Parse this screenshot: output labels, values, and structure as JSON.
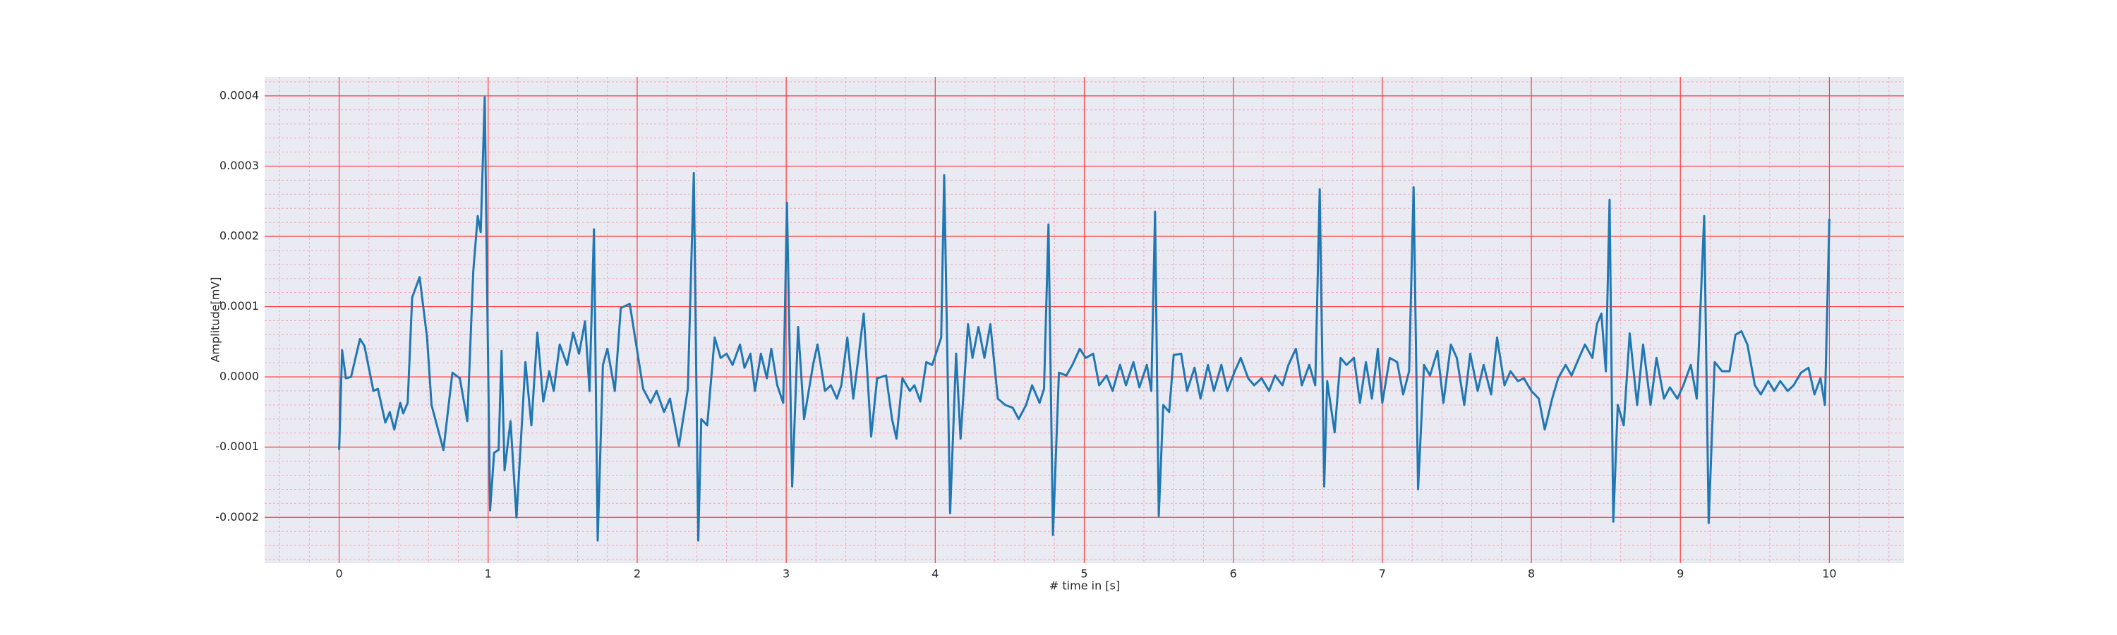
{
  "chart_data": {
    "type": "line",
    "xlabel": "# time in [s]",
    "ylabel": "Amplitude[mV]",
    "xlim": [
      -0.5,
      10.5
    ],
    "ylim": [
      -0.000265,
      0.000427
    ],
    "xticks": [
      0,
      1,
      2,
      3,
      4,
      5,
      6,
      7,
      8,
      9,
      10
    ],
    "yticks": [
      {
        "value": -0.0002,
        "label": "-0.0002"
      },
      {
        "value": -0.0001,
        "label": "-0.0001"
      },
      {
        "value": 0,
        "label": "0.0000"
      },
      {
        "value": 0.0001,
        "label": "0.0001"
      },
      {
        "value": 0.0002,
        "label": "0.0002"
      },
      {
        "value": 0.0003,
        "label": "0.0003"
      },
      {
        "value": 0.0004,
        "label": "0.0004"
      }
    ],
    "grid": true,
    "minor_grid": 5,
    "series": [
      {
        "color": "#1f77b4",
        "x": [
          0,
          0.02,
          0.045,
          0.08,
          0.14,
          0.17,
          0.23,
          0.26,
          0.31,
          0.34,
          0.37,
          0.41,
          0.43,
          0.46,
          0.49,
          0.54,
          0.59,
          0.62,
          0.7,
          0.76,
          0.81,
          0.86,
          0.9,
          0.93,
          0.95,
          0.977,
          0.995,
          1.013,
          1.04,
          1.07,
          1.09,
          1.11,
          1.15,
          1.19,
          1.25,
          1.29,
          1.33,
          1.37,
          1.41,
          1.44,
          1.48,
          1.53,
          1.57,
          1.61,
          1.65,
          1.68,
          1.71,
          1.735,
          1.77,
          1.8,
          1.85,
          1.89,
          1.95,
          2.0,
          2.04,
          2.09,
          2.13,
          2.18,
          2.22,
          2.28,
          2.34,
          2.38,
          2.41,
          2.43,
          2.47,
          2.52,
          2.56,
          2.6,
          2.64,
          2.69,
          2.72,
          2.76,
          2.79,
          2.83,
          2.87,
          2.9,
          2.94,
          2.98,
          3.005,
          3.04,
          3.08,
          3.12,
          3.18,
          3.21,
          3.26,
          3.3,
          3.34,
          3.37,
          3.41,
          3.45,
          3.49,
          3.52,
          3.57,
          3.61,
          3.67,
          3.71,
          3.74,
          3.78,
          3.83,
          3.86,
          3.9,
          3.94,
          3.98,
          4.04,
          4.06,
          4.1,
          4.14,
          4.17,
          4.22,
          4.25,
          4.29,
          4.33,
          4.37,
          4.42,
          4.47,
          4.52,
          4.56,
          4.61,
          4.65,
          4.7,
          4.73,
          4.76,
          4.79,
          4.83,
          4.88,
          4.92,
          4.97,
          5.01,
          5.06,
          5.1,
          5.15,
          5.19,
          5.24,
          5.28,
          5.33,
          5.37,
          5.42,
          5.45,
          5.475,
          5.5,
          5.53,
          5.57,
          5.6,
          5.65,
          5.69,
          5.74,
          5.78,
          5.83,
          5.87,
          5.92,
          5.96,
          6.01,
          6.05,
          6.1,
          6.14,
          6.19,
          6.24,
          6.28,
          6.33,
          6.37,
          6.42,
          6.46,
          6.51,
          6.55,
          6.58,
          6.61,
          6.63,
          6.68,
          6.72,
          6.76,
          6.81,
          6.85,
          6.89,
          6.93,
          6.97,
          7.0,
          7.05,
          7.1,
          7.14,
          7.18,
          7.21,
          7.24,
          7.28,
          7.32,
          7.37,
          7.41,
          7.46,
          7.5,
          7.55,
          7.59,
          7.64,
          7.68,
          7.73,
          7.77,
          7.82,
          7.86,
          7.91,
          7.95,
          8.0,
          8.05,
          8.09,
          8.14,
          8.18,
          8.23,
          8.27,
          8.32,
          8.36,
          8.41,
          8.44,
          8.47,
          8.5,
          8.525,
          8.55,
          8.58,
          8.62,
          8.66,
          8.71,
          8.75,
          8.8,
          8.84,
          8.89,
          8.93,
          8.98,
          9.02,
          9.07,
          9.11,
          9.16,
          9.19,
          9.23,
          9.28,
          9.33,
          9.37,
          9.41,
          9.45,
          9.5,
          9.54,
          9.59,
          9.63,
          9.67,
          9.72,
          9.76,
          9.81,
          9.86,
          9.9,
          9.94,
          9.97,
          10.0
        ],
        "values": [
          -0.000104,
          3.8e-05,
          -2e-06,
          0,
          5.4e-05,
          4.4e-05,
          -2e-05,
          -1.7e-05,
          -6.5e-05,
          -5e-05,
          -7.5e-05,
          -3.7e-05,
          -5.2e-05,
          -3.7e-05,
          0.000113,
          0.000142,
          5.6e-05,
          -4e-05,
          -0.000104,
          6e-06,
          -2e-06,
          -6.3e-05,
          0.00015,
          0.000229,
          0.000206,
          0.000398,
          9.4e-05,
          -0.00019,
          -0.000108,
          -0.000104,
          3.7e-05,
          -0.000133,
          -6.3e-05,
          -0.0002,
          2.1e-05,
          -6.9e-05,
          6.3e-05,
          -3.5e-05,
          8e-06,
          -2e-05,
          4.6e-05,
          1.7e-05,
          6.3e-05,
          3.3e-05,
          7.9e-05,
          -2e-05,
          0.00021,
          -0.000233,
          1.7e-05,
          4e-05,
          -2e-05,
          9.8e-05,
          0.000104,
          3.7e-05,
          -1.7e-05,
          -3.7e-05,
          -2e-05,
          -5e-05,
          -3.1e-05,
          -9.8e-05,
          -1.7e-05,
          0.00029,
          -0.000233,
          -6e-05,
          -6.9e-05,
          5.6e-05,
          2.7e-05,
          3.3e-05,
          1.7e-05,
          4.6e-05,
          1.3e-05,
          3.3e-05,
          -2e-05,
          3.3e-05,
          -2e-06,
          4e-05,
          -1.2e-05,
          -3.7e-05,
          0.000248,
          -0.000156,
          7.1e-05,
          -6e-05,
          1.7e-05,
          4.6e-05,
          -2e-05,
          -1.2e-05,
          -3.1e-05,
          -1.2e-05,
          5.6e-05,
          -3.1e-05,
          3.7e-05,
          9e-05,
          -8.5e-05,
          -2e-06,
          2e-06,
          -6e-05,
          -8.8e-05,
          -2e-06,
          -2e-05,
          -1.2e-05,
          -3.5e-05,
          2.1e-05,
          1.7e-05,
          5.6e-05,
          0.000287,
          -0.000194,
          3.3e-05,
          -8.8e-05,
          7.5e-05,
          2.7e-05,
          7.1e-05,
          2.7e-05,
          7.5e-05,
          -3.1e-05,
          -4e-05,
          -4.4e-05,
          -6e-05,
          -4e-05,
          -1.2e-05,
          -3.7e-05,
          -1.7e-05,
          0.000217,
          -0.000225,
          6e-06,
          2e-06,
          1.7e-05,
          4e-05,
          2.7e-05,
          3.3e-05,
          -1.2e-05,
          2e-06,
          -2e-05,
          1.7e-05,
          -1.2e-05,
          2.1e-05,
          -1.5e-05,
          1.7e-05,
          -2e-05,
          0.000235,
          -0.000198,
          -4e-05,
          -5e-05,
          3.1e-05,
          3.3e-05,
          -2e-05,
          1.3e-05,
          -3.1e-05,
          1.7e-05,
          -2e-05,
          1.7e-05,
          -2e-05,
          8e-06,
          2.7e-05,
          -2e-06,
          -1.2e-05,
          -2e-06,
          -2e-05,
          2e-06,
          -1.2e-05,
          1.7e-05,
          4e-05,
          -1.2e-05,
          1.7e-05,
          -1.2e-05,
          0.000267,
          -0.000156,
          -6e-06,
          -7.9e-05,
          2.7e-05,
          1.7e-05,
          2.7e-05,
          -3.7e-05,
          2.1e-05,
          -3.1e-05,
          4e-05,
          -3.7e-05,
          2.7e-05,
          2.1e-05,
          -2.5e-05,
          8e-06,
          0.00027,
          -0.00016,
          1.7e-05,
          2e-06,
          3.7e-05,
          -3.7e-05,
          4.6e-05,
          2.7e-05,
          -4e-05,
          3.3e-05,
          -2e-05,
          1.7e-05,
          -2.5e-05,
          5.6e-05,
          -1.2e-05,
          8e-06,
          -6e-06,
          -2e-06,
          -2e-05,
          -3.1e-05,
          -7.5e-05,
          -3.1e-05,
          -2e-06,
          1.7e-05,
          2e-06,
          2.7e-05,
          4.6e-05,
          2.7e-05,
          7.5e-05,
          9e-05,
          8e-06,
          0.000252,
          -0.000206,
          -4e-05,
          -6.9e-05,
          6.2e-05,
          -4e-05,
          4.6e-05,
          -4e-05,
          2.7e-05,
          -3.1e-05,
          -1.5e-05,
          -3.1e-05,
          -1.2e-05,
          1.7e-05,
          -3.1e-05,
          0.000229,
          -0.000208,
          2.1e-05,
          8e-06,
          8e-06,
          6e-05,
          6.5e-05,
          4.6e-05,
          -1.2e-05,
          -2.5e-05,
          -6e-06,
          -2e-05,
          -6e-06,
          -2e-05,
          -1.2e-05,
          6e-06,
          1.3e-05,
          -2.5e-05,
          -2e-06,
          -4e-05,
          0.000225
        ]
      }
    ]
  }
}
